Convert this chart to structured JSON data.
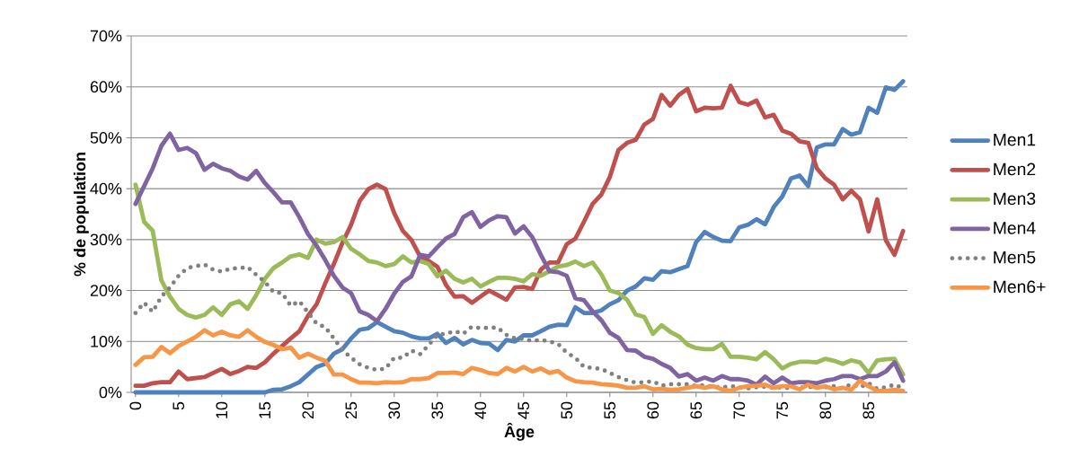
{
  "chart_data": {
    "type": "line",
    "xlabel": "Âge",
    "ylabel": "% de population",
    "x": [
      0,
      1,
      2,
      3,
      4,
      5,
      6,
      7,
      8,
      9,
      10,
      11,
      12,
      13,
      14,
      15,
      16,
      17,
      18,
      19,
      20,
      21,
      22,
      23,
      24,
      25,
      26,
      27,
      28,
      29,
      30,
      31,
      32,
      33,
      34,
      35,
      36,
      37,
      38,
      39,
      40,
      41,
      42,
      43,
      44,
      45,
      46,
      47,
      48,
      49,
      50,
      51,
      52,
      53,
      54,
      55,
      56,
      57,
      58,
      59,
      60,
      61,
      62,
      63,
      64,
      65,
      66,
      67,
      68,
      69,
      70,
      71,
      72,
      73,
      74,
      75,
      76,
      77,
      78,
      79,
      80,
      81,
      82,
      83,
      84,
      85,
      86,
      87,
      88,
      89
    ],
    "xlim": [
      -0.5,
      89.5
    ],
    "xticks": [
      0,
      5,
      10,
      15,
      20,
      25,
      30,
      35,
      40,
      45,
      50,
      55,
      60,
      65,
      70,
      75,
      80,
      85
    ],
    "ylim": [
      0,
      70
    ],
    "yticks": [
      {
        "value": 0,
        "label": "0%"
      },
      {
        "value": 10,
        "label": "10%"
      },
      {
        "value": 20,
        "label": "20%"
      },
      {
        "value": 30,
        "label": "30%"
      },
      {
        "value": 40,
        "label": "40%"
      },
      {
        "value": 50,
        "label": "50%"
      },
      {
        "value": 60,
        "label": "60%"
      },
      {
        "value": 70,
        "label": "70%"
      }
    ],
    "grid": "y",
    "legend": "right",
    "line_style": "solid",
    "series": [
      {
        "name": "Men1",
        "color": "#4f81bd",
        "values": [
          0,
          0,
          0,
          0,
          0,
          0,
          0,
          0,
          0,
          0,
          0,
          0,
          0,
          0,
          0,
          0,
          0.5,
          0.6,
          1.2,
          2,
          3.5,
          5,
          5.6,
          7.6,
          8.5,
          10.6,
          12.3,
          12.6,
          13.8,
          12.9,
          12,
          11.7,
          11,
          10.6,
          10.6,
          11.5,
          9.7,
          10.7,
          9.4,
          10.3,
          9.7,
          9.6,
          8.3,
          10.3,
          10,
          11.2,
          11.2,
          12,
          12.9,
          13.3,
          13.2,
          16.7,
          15.6,
          15.6,
          16.1,
          17.3,
          18.1,
          20,
          20.8,
          22.4,
          22.1,
          23.8,
          23.6,
          24.2,
          24.8,
          29.5,
          31.5,
          30.5,
          29.8,
          29.7,
          32.4,
          32.9,
          34,
          33,
          36.4,
          38.5,
          42,
          42.6,
          40.5,
          48.1,
          48.7,
          48.7,
          51.7,
          50.6,
          51.1,
          55.9,
          54.9,
          59.9,
          59.4,
          61.1
        ]
      },
      {
        "name": "Men2",
        "color": "#c0504d",
        "values": [
          1.3,
          1.3,
          1.8,
          2,
          2,
          4.1,
          2.6,
          2.8,
          3,
          3.8,
          4.6,
          3.6,
          4.2,
          5,
          4.8,
          5.9,
          7.6,
          9.1,
          10.6,
          12,
          15,
          17.3,
          21.4,
          25.2,
          29.4,
          32.9,
          37.6,
          39.9,
          40.8,
          39.9,
          35.2,
          31.7,
          29.9,
          26.7,
          25.8,
          24.7,
          21.1,
          18.8,
          18.9,
          17.6,
          18.8,
          20,
          19.1,
          18.2,
          20.6,
          20.7,
          20.3,
          24.1,
          25.5,
          25.5,
          29.1,
          30.2,
          33.5,
          37,
          38.8,
          42.3,
          47.6,
          49,
          49.6,
          52.6,
          53.7,
          58.4,
          56.3,
          58.4,
          59.6,
          55.2,
          55.9,
          55.8,
          55.9,
          60.2,
          57,
          56.5,
          57.3,
          54,
          54.5,
          51.4,
          50.8,
          49.3,
          49,
          44,
          42,
          40.8,
          37.9,
          39.6,
          37.9,
          31.6,
          37.9,
          29.9,
          27,
          31.7
        ]
      },
      {
        "name": "Men3",
        "color": "#9bbb59",
        "values": [
          40.8,
          33.5,
          31.7,
          22,
          18.8,
          16.4,
          15.2,
          14.7,
          15.2,
          16.7,
          15.2,
          17.3,
          17.9,
          16.4,
          19.1,
          22.3,
          24.4,
          25.5,
          26.7,
          27.1,
          26.4,
          30,
          29.2,
          29.5,
          30.5,
          28.2,
          27.1,
          25.8,
          25.5,
          24.8,
          25.2,
          26.7,
          25.5,
          25.8,
          25.2,
          22.8,
          23.9,
          22.3,
          21.6,
          22.3,
          20.8,
          21.7,
          22.5,
          22.5,
          22.3,
          21.8,
          23.2,
          22.9,
          23.8,
          24.7,
          25,
          25.7,
          24.8,
          25.5,
          23.2,
          20,
          19.5,
          18.2,
          15.3,
          14.8,
          11.5,
          13.2,
          11.9,
          11,
          9.4,
          8.7,
          8.5,
          8.5,
          9.5,
          7,
          7,
          6.8,
          6.5,
          7.9,
          6.5,
          4.7,
          5.6,
          6,
          6,
          5.9,
          6.6,
          6.2,
          5.6,
          6.3,
          5.9,
          3.8,
          6.3,
          6.5,
          6.6,
          3.5
        ]
      },
      {
        "name": "Men4",
        "color": "#8064a2",
        "values": [
          37,
          40.5,
          44,
          48.4,
          50.8,
          47.6,
          48,
          47,
          43.7,
          44.9,
          44,
          43.5,
          42.4,
          41.8,
          43.5,
          41.1,
          39.3,
          37.3,
          37.3,
          34.4,
          31.1,
          28.8,
          26,
          22.9,
          20.6,
          19.5,
          15.9,
          15.2,
          14,
          16.4,
          19.4,
          21.7,
          22.8,
          27,
          26.7,
          28.5,
          30.2,
          31.1,
          34.4,
          35.4,
          32.5,
          33.8,
          34.6,
          34.4,
          31.2,
          32.6,
          30.5,
          27,
          23.8,
          23.6,
          22.9,
          18.5,
          18.1,
          15.9,
          14.2,
          11.7,
          10.7,
          8.3,
          8.2,
          7,
          6.6,
          5.6,
          4.8,
          3.1,
          3.6,
          2.3,
          2.9,
          2.3,
          3.2,
          2.6,
          2.6,
          2.3,
          1.5,
          3.1,
          1.8,
          2.9,
          1.8,
          2,
          2,
          1.8,
          2.3,
          2.6,
          3.2,
          3.2,
          2.6,
          3.2,
          3.2,
          4.1,
          5.9,
          2.3
        ]
      },
      {
        "name": "Men5",
        "color": "#808080",
        "line_style": "dotted",
        "values": [
          15.6,
          17.6,
          15.8,
          18.8,
          20.6,
          22.9,
          24.4,
          24.8,
          25.1,
          24.1,
          23.7,
          24.3,
          24.4,
          24.6,
          23.1,
          21.7,
          19.7,
          19.5,
          17,
          17.9,
          15.7,
          13.5,
          12.8,
          10.6,
          8.3,
          6.8,
          5.5,
          4.8,
          4.4,
          4.7,
          6.8,
          6.8,
          8.2,
          7.5,
          9.3,
          11.3,
          11.5,
          12,
          11.5,
          12.9,
          12.6,
          12.7,
          12.7,
          11.3,
          10.6,
          10.5,
          10.1,
          10.3,
          10,
          9.5,
          7.8,
          6.8,
          5,
          4.8,
          4.6,
          3.8,
          3,
          2.4,
          1.9,
          2,
          2.2,
          1.3,
          1.6,
          1.6,
          1.6,
          1.3,
          1.4,
          1.1,
          1,
          1.2,
          1,
          0.8,
          1,
          1.1,
          0.9,
          1,
          0.8,
          1,
          1.1,
          0.9,
          1,
          1.2,
          0.8,
          1.6,
          1,
          1.8,
          0.7,
          1,
          1.5,
          0.8
        ]
      },
      {
        "name": "Men6+",
        "color": "#f79646",
        "values": [
          5.4,
          6.9,
          7,
          8.9,
          7.7,
          9.1,
          10,
          10.9,
          12.2,
          11.2,
          11.9,
          11.2,
          10.9,
          12.2,
          10.9,
          9.9,
          9.3,
          8.5,
          8.8,
          6.8,
          7.6,
          6.8,
          6.2,
          3.5,
          3.5,
          2.6,
          1.9,
          1.9,
          1.8,
          2,
          1.9,
          2,
          2.6,
          2.6,
          2.8,
          3.8,
          3.8,
          3.9,
          3.6,
          4.8,
          4.4,
          3.8,
          3.6,
          4.8,
          4.1,
          5,
          4.1,
          4.7,
          3.8,
          4.2,
          2.9,
          2.2,
          2,
          1.9,
          1.6,
          1.5,
          1.3,
          0.9,
          0.9,
          1.2,
          0.6,
          0.7,
          0.5,
          0.6,
          0.9,
          1.2,
          0.9,
          1.2,
          0.6,
          0.3,
          0.9,
          1.2,
          1.3,
          1.5,
          0.9,
          1.2,
          1.2,
          0.6,
          1.5,
          0.9,
          1.2,
          0.6,
          0.9,
          0.5,
          2.3,
          1.2,
          0.3,
          0.3,
          0.5,
          0.3
        ]
      }
    ]
  }
}
